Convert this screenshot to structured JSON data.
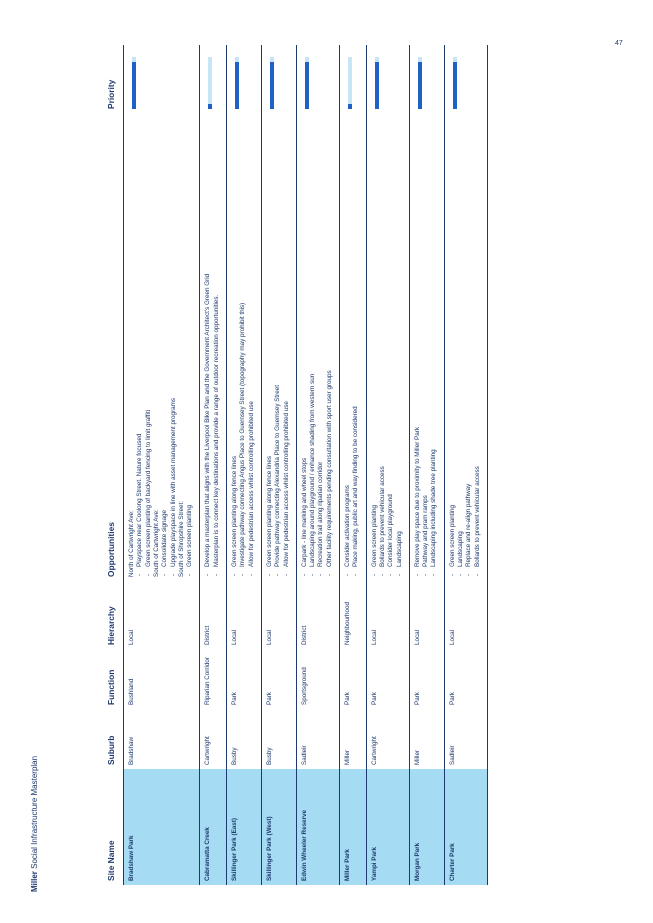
{
  "running_head": {
    "brand": "Miller",
    "rest": " Social Infrastructure Masterplan"
  },
  "page_number": "47",
  "colors": {
    "text": "#1e3a6e",
    "site_cell": "#a6dcf3",
    "priority_fill": "#1d62c4",
    "priority_track": "#c7e5f4"
  },
  "table": {
    "headers": {
      "site": "Site Name",
      "suburb": "Suburb",
      "function": "Function",
      "hierarchy": "Hierarchy",
      "opportunities": "Opportunities",
      "priority": "Priority"
    },
    "rows": [
      {
        "site": "Bradshaw Park",
        "suburb": "Bradshaw",
        "function": "Bushland",
        "hierarchy": "Local",
        "opportunities": [
          {
            "t": "North of Cartwright Ave:",
            "h": true
          },
          {
            "t": "Playspace near Coolong Street. Nature focused"
          },
          {
            "t": "Green screen planting of backyard fencing to limit graffiti"
          },
          {
            "t": "South of Cartwright Ave:",
            "h": true
          },
          {
            "t": "Consolidate signage"
          },
          {
            "t": "Upgrade playspace in line with asset management programs"
          },
          {
            "t": "South of Shropshire Street:",
            "h": true
          },
          {
            "t": "Green screen planting"
          }
        ],
        "priority": 0.9
      },
      {
        "site": "Cabramatta Creek",
        "suburb": "Cartwright",
        "function": "Riparian Corridor",
        "hierarchy": "District",
        "opportunities": [
          {
            "t": "Develop a masterplan that aligns with the Liverpool Bike Plan and the Government Architect's Green Grid"
          },
          {
            "t": "Masterplan is to connect key destinations and provide a range of outdoor recreation opportunities."
          }
        ],
        "priority": 0.1
      },
      {
        "site": "Skillinger Park (East)",
        "suburb": "Busby",
        "function": "Park",
        "hierarchy": "Local",
        "opportunities": [
          {
            "t": "Green screen planting along fence lines"
          },
          {
            "t": "Investigate pathway connecting Angus Place to Guernsey Street (topography may prohibit this)"
          },
          {
            "t": "Allow for pedestrian access whilst controlling prohibited use"
          }
        ],
        "priority": 0.9
      },
      {
        "site": "Skillinger Park (West)",
        "suburb": "Busby",
        "function": "Park",
        "hierarchy": "Local",
        "opportunities": [
          {
            "t": "Green screen planting along fence lines"
          },
          {
            "t": "Provide pathway connecting Alexandria Place to Guernsey Street"
          },
          {
            "t": "Allow for pedestrian access whilst controlling prohibited use"
          }
        ],
        "priority": 0.9
      },
      {
        "site": "Edwin Wheeler Reserve",
        "suburb": "Sadleir",
        "function": "Sportsground",
        "hierarchy": "District",
        "opportunities": [
          {
            "t": "Carpark - line marking and wheel stops"
          },
          {
            "t": "Landscaping around playground / enhance shading from western sun"
          },
          {
            "t": "Recreation trail along riparian corridor"
          },
          {
            "t": "Other facility requirements pending consultation with sport user groups"
          }
        ],
        "priority": 0.9
      },
      {
        "site": "Miller Park",
        "suburb": "Miller",
        "function": "Park",
        "hierarchy": "Neighbourhood",
        "opportunities": [
          {
            "t": "Consider activation programs"
          },
          {
            "t": "Place making, public art and way finding to be considered"
          }
        ],
        "priority": 0.1
      },
      {
        "site": "Yampi Park",
        "suburb": "Cartwright",
        "function": "Park",
        "hierarchy": "Local",
        "opportunities": [
          {
            "t": "Green screen planting"
          },
          {
            "t": "Bollards to prevent vehicular access"
          },
          {
            "t": "Consider local playground"
          },
          {
            "t": "Landscaping"
          }
        ],
        "priority": 0.9
      },
      {
        "site": "Morgan Park",
        "suburb": "Miller",
        "function": "Park",
        "hierarchy": "Local",
        "opportunities": [
          {
            "t": "Remove play space due to proximity to Miller Park"
          },
          {
            "t": "Pathway and pram ramps"
          },
          {
            "t": "Landscaping including shade tree planting"
          }
        ],
        "priority": 0.9
      },
      {
        "site": "Charter Park",
        "suburb": "Sadleir",
        "function": "Park",
        "hierarchy": "Local",
        "opportunities": [
          {
            "t": "Green screen planting"
          },
          {
            "t": "Landscaping"
          },
          {
            "t": "Replace and re-align pathway"
          },
          {
            "t": "Bollards to prevent vehicular access"
          }
        ],
        "priority": 0.9
      }
    ]
  }
}
